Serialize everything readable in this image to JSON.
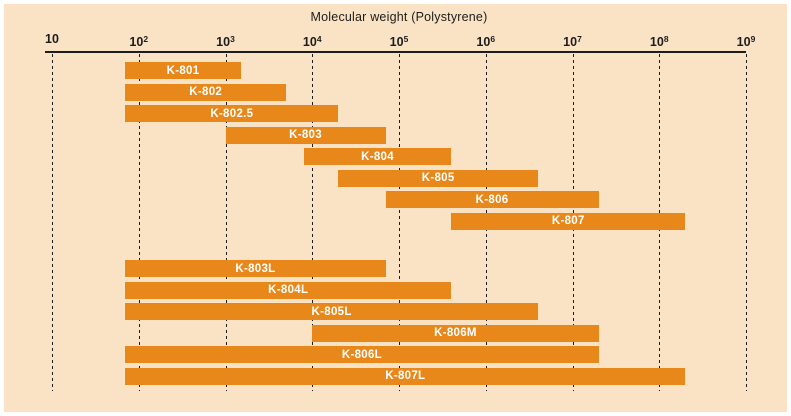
{
  "figure": {
    "background_color": "#FAE3C4",
    "frame_color": "#FFFFFF",
    "bar_color": "#E8881B",
    "bar_label_color": "#FFFFFF",
    "axis_color": "#1C1C1C"
  },
  "chart_data": {
    "type": "bar",
    "subtype": "horizontal-range-bars",
    "title": "Molecular weight (Polystyrene)",
    "xlabel": "Molecular weight (Polystyrene)",
    "ylabel": "",
    "x_scale": "log10",
    "xlim": [
      10,
      1000000000
    ],
    "grid": "vertical-dashed",
    "legend": "none",
    "x_ticks": [
      {
        "label": "10",
        "exponent": 1,
        "value": 10
      },
      {
        "label": "10^2",
        "exponent": 2,
        "value": 100
      },
      {
        "label": "10^3",
        "exponent": 3,
        "value": 1000
      },
      {
        "label": "10^4",
        "exponent": 4,
        "value": 10000
      },
      {
        "label": "10^5",
        "exponent": 5,
        "value": 100000
      },
      {
        "label": "10^6",
        "exponent": 6,
        "value": 1000000
      },
      {
        "label": "10^7",
        "exponent": 7,
        "value": 10000000
      },
      {
        "label": "10^8",
        "exponent": 8,
        "value": 100000000
      },
      {
        "label": "10^9",
        "exponent": 9,
        "value": 1000000000
      }
    ],
    "series": [
      {
        "label": "K-801",
        "group": 0,
        "range_min": 70,
        "range_max": 1500
      },
      {
        "label": "K-802",
        "group": 0,
        "range_min": 70,
        "range_max": 5000
      },
      {
        "label": "K-802.5",
        "group": 0,
        "range_min": 70,
        "range_max": 20000
      },
      {
        "label": "K-803",
        "group": 0,
        "range_min": 1000,
        "range_max": 70000
      },
      {
        "label": "K-804",
        "group": 0,
        "range_min": 8000,
        "range_max": 400000
      },
      {
        "label": "K-805",
        "group": 0,
        "range_min": 20000,
        "range_max": 4000000
      },
      {
        "label": "K-806",
        "group": 0,
        "range_min": 70000,
        "range_max": 20000000
      },
      {
        "label": "K-807",
        "group": 0,
        "range_min": 400000,
        "range_max": 200000000
      },
      {
        "label": "K-803L",
        "group": 1,
        "range_min": 70,
        "range_max": 70000
      },
      {
        "label": "K-804L",
        "group": 1,
        "range_min": 70,
        "range_max": 400000
      },
      {
        "label": "K-805L",
        "group": 1,
        "range_min": 70,
        "range_max": 4000000
      },
      {
        "label": "K-806M",
        "group": 1,
        "range_min": 10000,
        "range_max": 20000000
      },
      {
        "label": "K-806L",
        "group": 1,
        "range_min": 70,
        "range_max": 20000000
      },
      {
        "label": "K-807L",
        "group": 1,
        "range_min": 70,
        "range_max": 200000000
      }
    ]
  }
}
